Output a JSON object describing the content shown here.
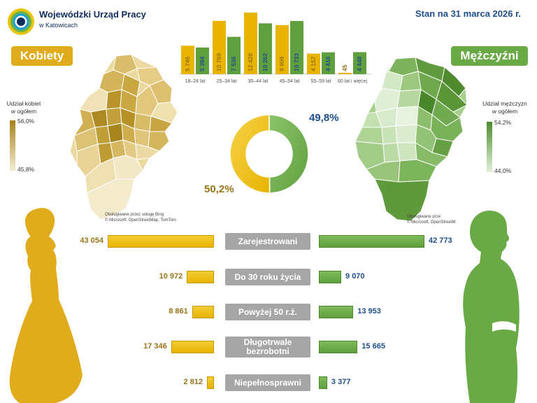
{
  "header": {
    "org_name": "Wojewódzki Urząd Pracy",
    "org_city": "w Katowicach",
    "date_label": "Stan na 31 marca 2026 r."
  },
  "women": {
    "label": "Kobiety",
    "legend_title_line1": "Udział kobiet",
    "legend_title_line2": "w ogółem",
    "legend_max": "56,0%",
    "legend_min": "45,8%",
    "share": "50,2%",
    "map_credit_line1": "Obsługiwane przez usługę Bing",
    "map_credit_line2": "© Microsoft, OpenStreetMap, TomTom"
  },
  "men": {
    "label": "Mężczyźni",
    "legend_title_line1": "Udział mężczyzn",
    "legend_title_line2": "w ogółem",
    "legend_max": "54,2%",
    "legend_min": "44,0%",
    "share": "49,8%",
    "map_credit_line1": "Obsługiwane prze",
    "map_credit_line2": "© Microsoft, OpenStreetM"
  },
  "colors": {
    "women": "#e8b400",
    "men": "#5f9f3e",
    "women_text": "#9a7419",
    "men_text": "#1f4e8c",
    "category_bg": "#a6a6a6"
  },
  "chart_data": [
    {
      "type": "bar",
      "categories": [
        "18–24 lat",
        "25–34 lat",
        "35–44 lat",
        "45–54 lat",
        "55–59 lat",
        "60 lat i więcej"
      ],
      "series": [
        {
          "name": "Kobiety",
          "values": [
            5746,
            10769,
            12428,
            9909,
            4157,
            45
          ],
          "labels": [
            "5 746",
            "10 769",
            "12 428",
            "9 909",
            "4 157",
            "45"
          ]
        },
        {
          "name": "Mężczyźni",
          "values": [
            5384,
            7536,
            10262,
            10733,
            4410,
            4448
          ],
          "labels": [
            "5 384",
            "7 536",
            "10 262",
            "10 733",
            "4 410",
            "4 448"
          ]
        }
      ],
      "ylim": [
        0,
        13000
      ]
    },
    {
      "type": "pie",
      "donut": true,
      "slices": [
        {
          "name": "Mężczyźni",
          "value": 49.8,
          "label": "49,8%"
        },
        {
          "name": "Kobiety",
          "value": 50.2,
          "label": "50,2%"
        }
      ]
    },
    {
      "type": "bar",
      "orientation": "horizontal",
      "categories": [
        "Zarejestrowani",
        "Do 30 roku życia",
        "Powyżej 50 r.ż.",
        "Długotrwale bezrobotni",
        "Niepełnosprawni"
      ],
      "series": [
        {
          "name": "Kobiety",
          "values": [
            43054,
            10972,
            8861,
            17346,
            2812
          ],
          "labels": [
            "43 054",
            "10 972",
            "8 861",
            "17 346",
            "2 812"
          ]
        },
        {
          "name": "Mężczyźni",
          "values": [
            42773,
            9070,
            13953,
            15665,
            3377
          ],
          "labels": [
            "42 773",
            "9 070",
            "13 953",
            "15 665",
            "3 377"
          ]
        }
      ]
    }
  ]
}
